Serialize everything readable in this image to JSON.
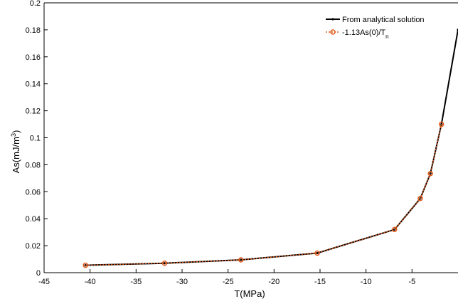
{
  "chart_data": {
    "type": "line",
    "title": "",
    "xlabel": "T(MPa)",
    "ylabel_base": "As(mJ/m",
    "ylabel_sup": "3",
    "ylabel_tail": ")",
    "xlim": [
      -45,
      0
    ],
    "ylim": [
      0,
      0.2
    ],
    "xticks": [
      -45,
      -40,
      -35,
      -30,
      -25,
      -20,
      -15,
      -10,
      -5
    ],
    "xtick_labels": [
      "-45",
      "-40",
      "-35",
      "-30",
      "-25",
      "-20",
      "-15",
      "-10",
      "-5"
    ],
    "yticks": [
      0,
      0.02,
      0.04,
      0.06,
      0.08,
      0.1,
      0.12,
      0.14,
      0.16,
      0.18,
      0.2
    ],
    "ytick_labels": [
      "0",
      "0.02",
      "0.04",
      "0.06",
      "0.08",
      "0.1",
      "0.12",
      "0.14",
      "0.16",
      "0.18",
      "0.2"
    ],
    "grid": false,
    "legend_position": "top-right",
    "series": [
      {
        "name": "From analytical solution",
        "color": "#000000",
        "marker": "point",
        "x": [
          -40.5,
          -31.9,
          -23.6,
          -15.3,
          -6.9,
          -4.1,
          -3.0,
          -1.8,
          0
        ],
        "y": [
          0.0055,
          0.007,
          0.0095,
          0.0145,
          0.032,
          0.055,
          0.0735,
          0.11,
          0.18
        ]
      },
      {
        "name_base": "-1.13As(0)/T",
        "name_sub": "n",
        "color": "#e05a1a",
        "marker": "circle",
        "dashed": true,
        "x": [
          -40.5,
          -31.9,
          -23.6,
          -15.3,
          -6.9,
          -4.1,
          -3.0,
          -1.8
        ],
        "y": [
          0.0055,
          0.007,
          0.0095,
          0.0145,
          0.032,
          0.055,
          0.0735,
          0.11
        ]
      }
    ]
  }
}
